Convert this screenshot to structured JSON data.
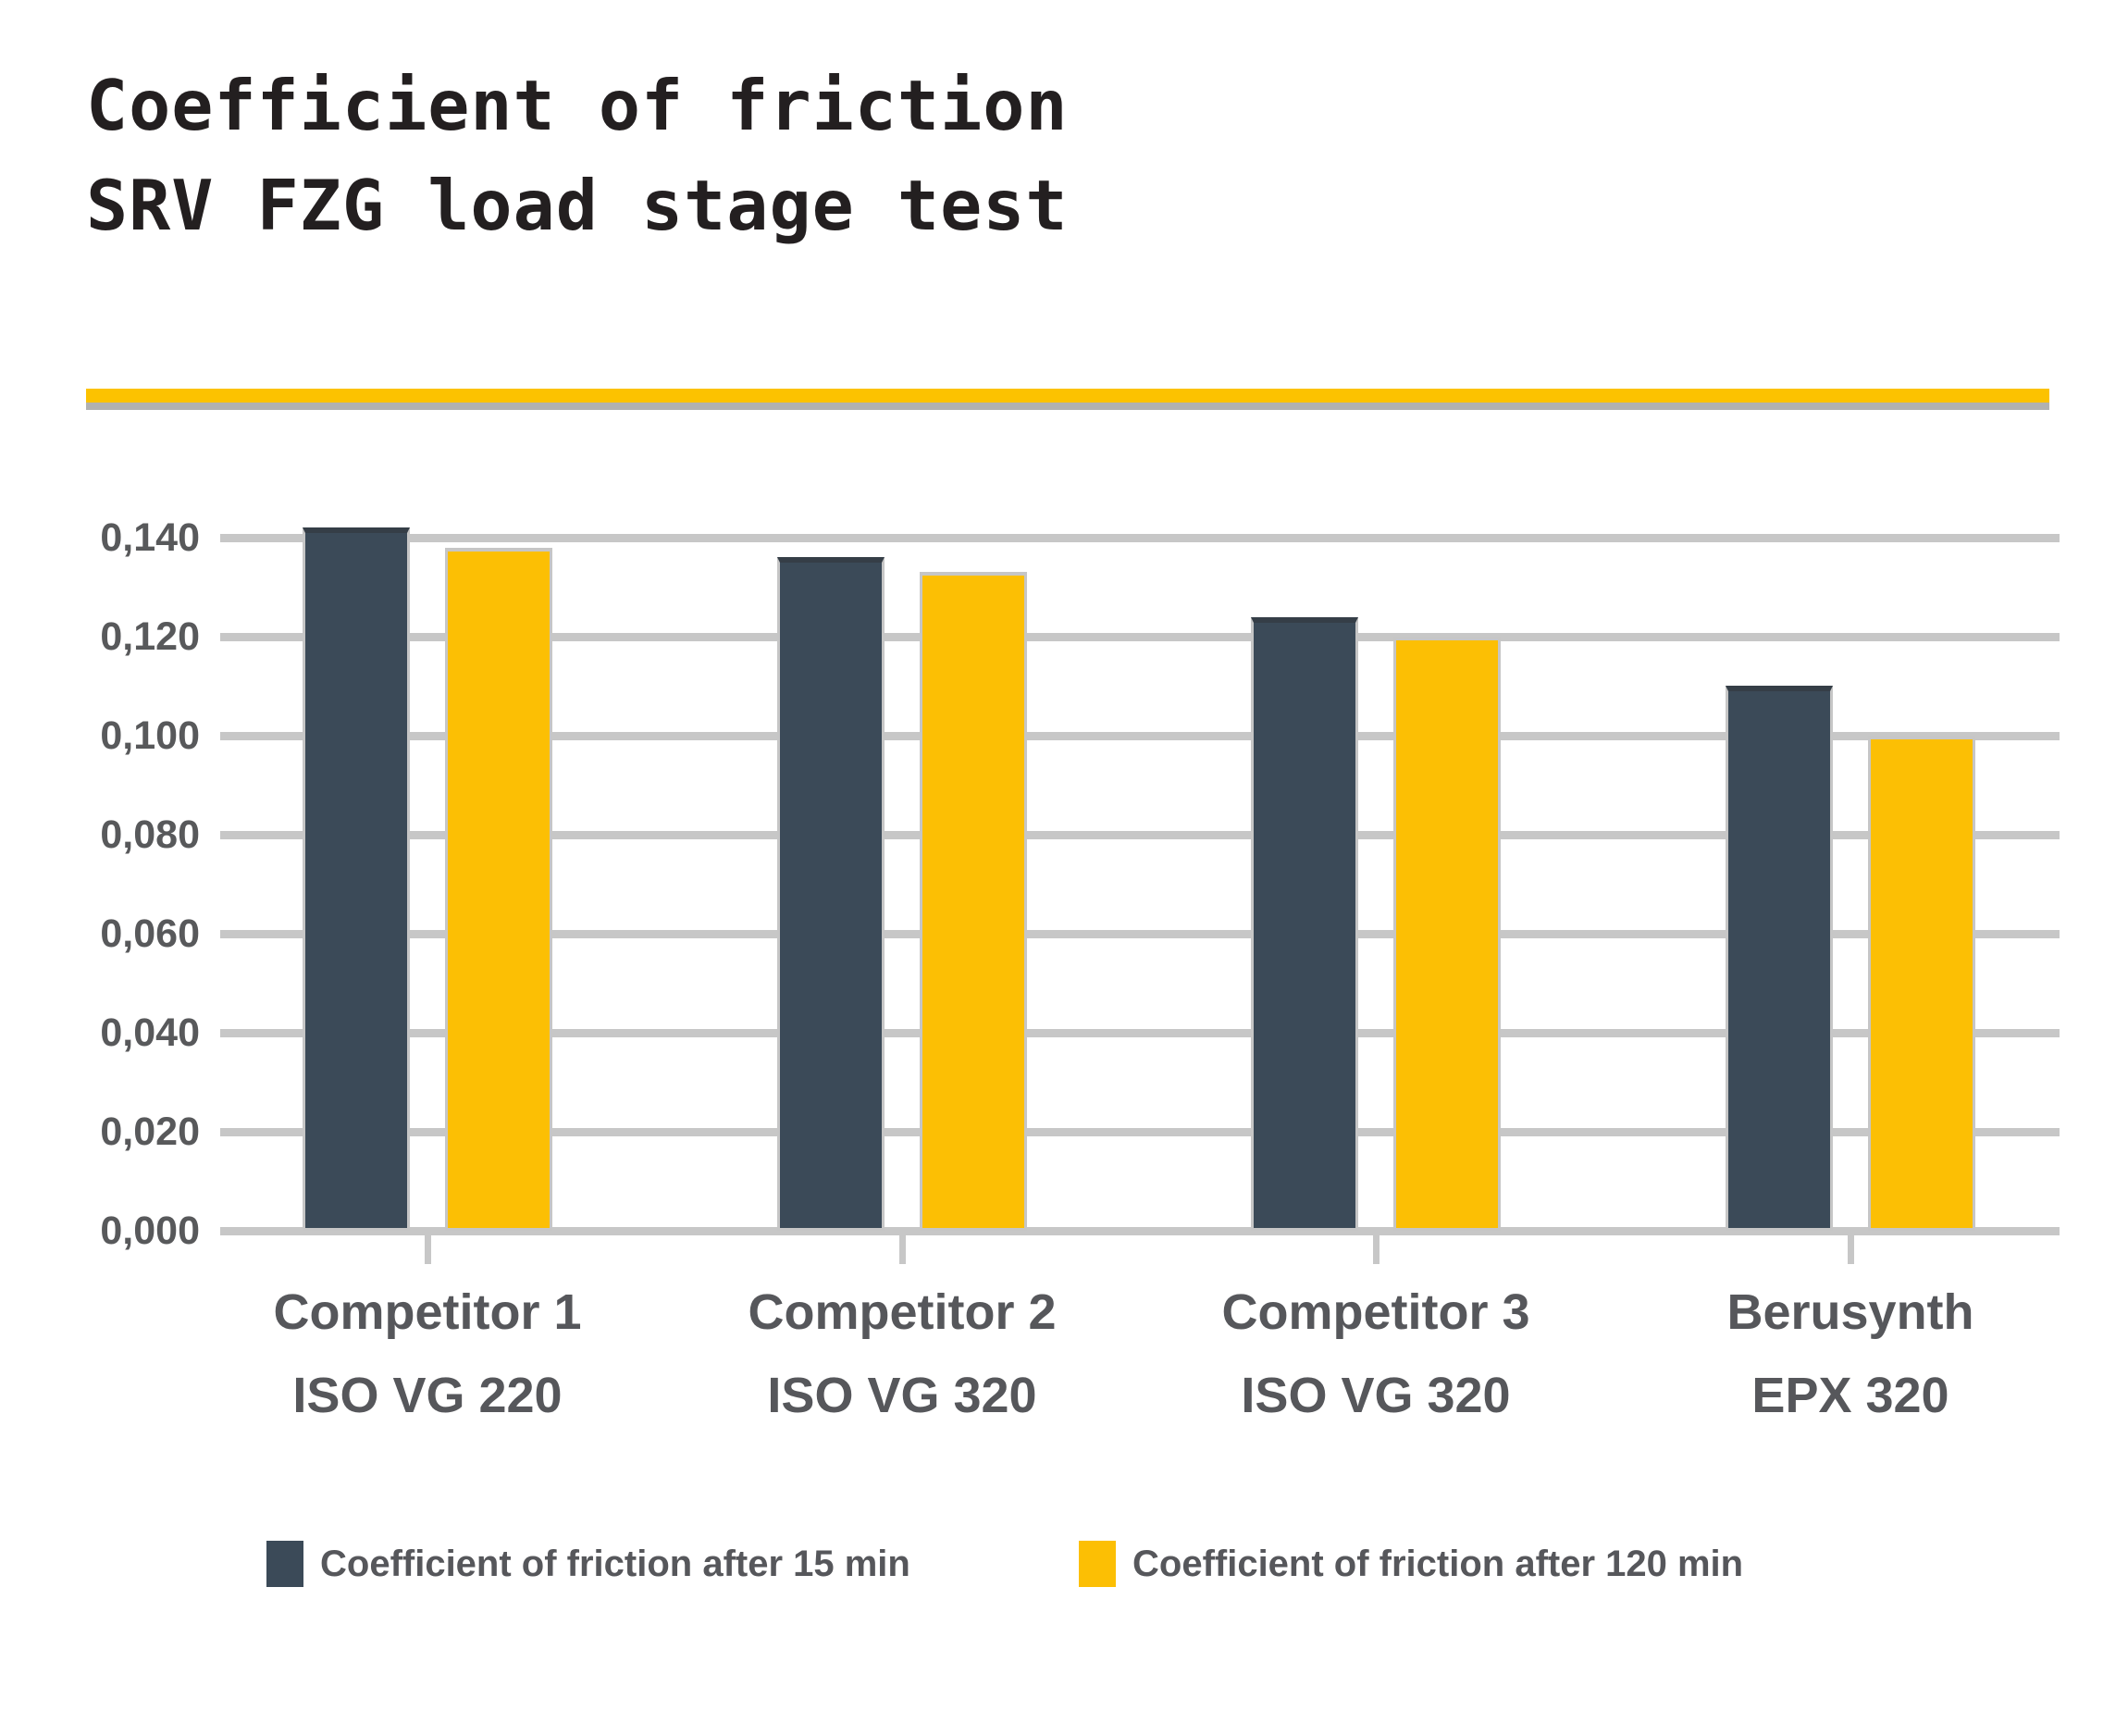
{
  "title": {
    "line1": "Coefficient of friction",
    "line2": "SRV FZG load stage test"
  },
  "colors": {
    "title_text": "#231f20",
    "accent_rule_yellow": "#fcc200",
    "accent_rule_gray": "#b1b1b1",
    "grid": "#c7c7c7",
    "axis_text": "#58595b",
    "series_navy": "#3b4a58",
    "series_navy_cap": "#353e47",
    "series_yellow": "#fcbf04",
    "bar_edge": "#c6c6c6"
  },
  "chart_data": {
    "type": "bar",
    "title": "Coefficient of friction SRV FZG load stage test",
    "categories": [
      {
        "name": "Competitor 1",
        "spec": "ISO VG 220"
      },
      {
        "name": "Competitor 2",
        "spec": "ISO VG 320"
      },
      {
        "name": "Competitor 3",
        "spec": "ISO VG 320"
      },
      {
        "name": "Berusynth",
        "spec": "EPX 320"
      }
    ],
    "series": [
      {
        "name": "Coefficient of friction after 15 min",
        "color": "#3b4a58",
        "values": [
          0.142,
          0.136,
          0.124,
          0.11
        ]
      },
      {
        "name": "Coefficient of friction after 120 min",
        "color": "#fcbf04",
        "values": [
          0.138,
          0.133,
          0.12,
          0.1
        ]
      }
    ],
    "yticks": {
      "values": [
        0.14,
        0.12,
        0.1,
        0.08,
        0.06,
        0.04,
        0.02,
        0.0
      ],
      "labels": [
        "0,140",
        "0,120",
        "0,100",
        "0,080",
        "0,060",
        "0,040",
        "0,020",
        "0,000"
      ]
    },
    "ylim": [
      0,
      0.145
    ],
    "grid": true,
    "legend_position": "bottom"
  }
}
